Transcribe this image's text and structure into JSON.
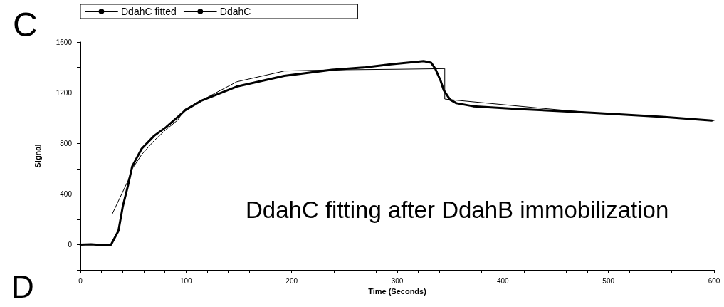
{
  "chart_data": {
    "type": "line",
    "xlabel": "Time (Seconds)",
    "ylabel": "Signal",
    "annotations": [
      "C",
      "D",
      "DdahC fitting after DdahB immobilization"
    ],
    "xlim": [
      0,
      600
    ],
    "ylim": [
      -200,
      1600
    ],
    "xticks": [
      0,
      {
        "value": 20,
        "label": null
      },
      {
        "value": 40,
        "label": null
      },
      {
        "value": 60,
        "label": null
      },
      {
        "value": 80,
        "label": null
      },
      100,
      {
        "value": 120,
        "label": null
      },
      {
        "value": 140,
        "label": null
      },
      {
        "value": 160,
        "label": null
      },
      {
        "value": 180,
        "label": null
      },
      200,
      {
        "value": 220,
        "label": null
      },
      {
        "value": 240,
        "label": null
      },
      {
        "value": 260,
        "label": null
      },
      {
        "value": 280,
        "label": null
      },
      300,
      {
        "value": 320,
        "label": null
      },
      {
        "value": 340,
        "label": null
      },
      {
        "value": 360,
        "label": null
      },
      {
        "value": 380,
        "label": null
      },
      400,
      {
        "value": 420,
        "label": null
      },
      {
        "value": 440,
        "label": null
      },
      {
        "value": 460,
        "label": null
      },
      {
        "value": 480,
        "label": null
      },
      500,
      {
        "value": 520,
        "label": null
      },
      {
        "value": 540,
        "label": null
      },
      {
        "value": 560,
        "label": null
      },
      {
        "value": 580,
        "label": null
      },
      600
    ],
    "yticks": [
      {
        "value": -200,
        "label": null
      },
      0,
      {
        "value": 200,
        "label": null
      },
      400,
      {
        "value": 600,
        "label": null
      },
      800,
      {
        "value": 1000,
        "label": null
      },
      1200,
      {
        "value": 1400,
        "label": null
      },
      1600
    ],
    "grid": false,
    "legend": "top left",
    "marker": "none",
    "line_style": "solid",
    "series": [
      {
        "name": "DdahC fitted",
        "color": "#000000",
        "x": [
          0,
          30,
          30,
          45,
          49,
          58,
          70,
          81,
          92,
          99,
          148,
          193,
          238,
          300,
          345,
          345,
          350,
          434,
          484,
          551,
          600
        ],
        "values": [
          0,
          0,
          240,
          504,
          598,
          711,
          823,
          908,
          983,
          1070,
          1286,
          1371,
          1380,
          1385,
          1390,
          1150,
          1145,
          1079,
          1042,
          1010,
          980
        ]
      },
      {
        "name": "DdahC",
        "color": "#000000",
        "x": [
          0,
          10,
          20,
          29,
          36,
          40,
          45,
          49,
          52,
          58,
          70,
          81,
          94,
          99,
          114,
          148,
          193,
          238,
          270,
          294,
          325,
          332,
          336,
          341,
          344,
          350,
          356,
          372,
          417,
          484,
          551,
          598
        ],
        "values": [
          0,
          2,
          -3,
          0,
          109,
          297,
          466,
          617,
          664,
          758,
          861,
          927,
          1021,
          1060,
          1135,
          1248,
          1333,
          1380,
          1400,
          1424,
          1450,
          1437,
          1390,
          1296,
          1220,
          1145,
          1117,
          1093,
          1070,
          1042,
          1010,
          980
        ]
      }
    ]
  }
}
